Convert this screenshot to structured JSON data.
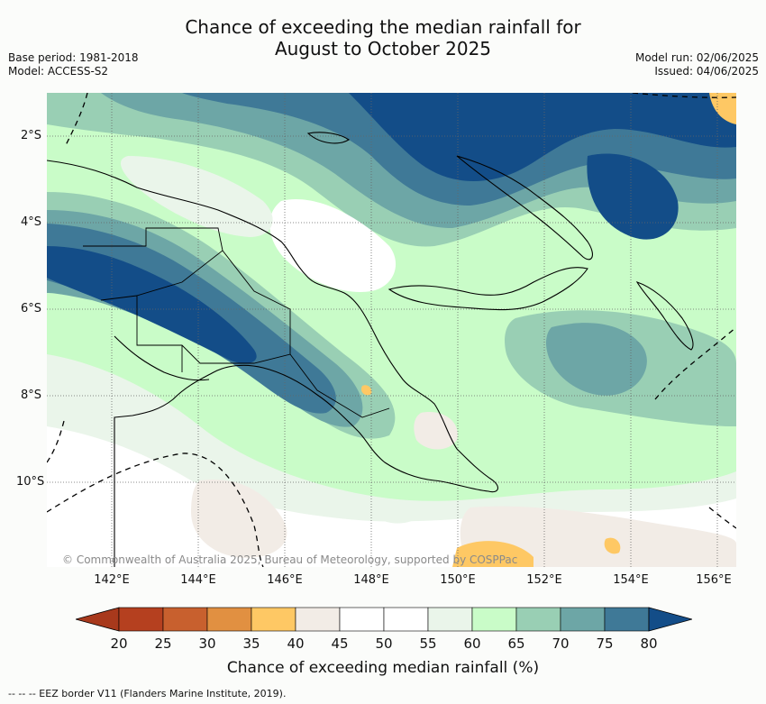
{
  "title_line1": "Chance of exceeding the median rainfall for",
  "title_line2": "August to October 2025",
  "meta_left": {
    "base_period": "Base period: 1981-2018",
    "model": "Model: ACCESS-S2"
  },
  "meta_right": {
    "model_run": "Model run: 02/06/2025",
    "issued": "Issued: 04/06/2025"
  },
  "lat_labels": [
    "2°S",
    "4°S",
    "6°S",
    "8°S",
    "10°S"
  ],
  "lon_labels": [
    "142°E",
    "144°E",
    "146°E",
    "148°E",
    "150°E",
    "152°E",
    "154°E",
    "156°E"
  ],
  "copyright": "© Commonwealth of Australia 2025, Bureau of Meteorology, supported by COSPPac",
  "colorbar": {
    "ticks": [
      "20",
      "25",
      "30",
      "35",
      "40",
      "45",
      "50",
      "55",
      "60",
      "65",
      "70",
      "75",
      "80"
    ],
    "colors": [
      "#b5401f",
      "#c8602e",
      "#e19041",
      "#fec864",
      "#f2ece6",
      "#ffffff",
      "#ffffff",
      "#eaf5ea",
      "#c9fcc8",
      "#99cfb4",
      "#6da6a6",
      "#3f7997"
    ],
    "under_color": "#a8391c",
    "over_color": "#134d88",
    "label": "Chance of exceeding median rainfall (%)"
  },
  "legend_footer": "--  --  -- EEZ border V11 (Flanders Marine Institute, 2019)."
}
